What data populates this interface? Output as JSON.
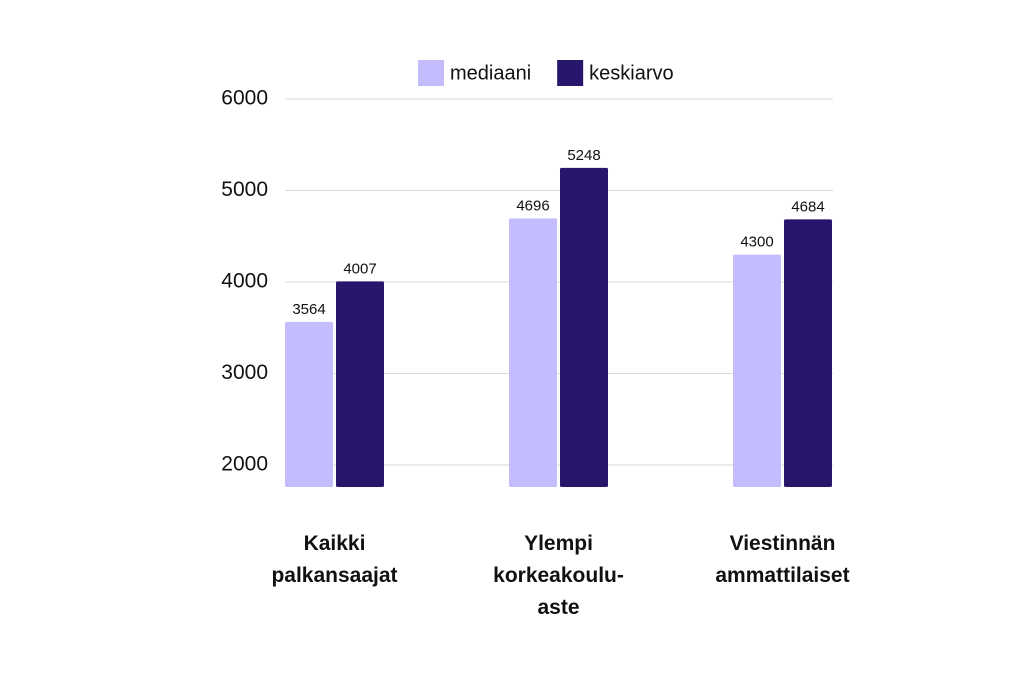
{
  "chart_data": {
    "type": "bar",
    "categories": [
      "Kaikki palkansaajat",
      "Ylempi korkeakoulu-aste",
      "Viestinnän ammattilaiset"
    ],
    "series": [
      {
        "name": "mediaani",
        "color": "#c4bdfd",
        "values": [
          3564,
          4696,
          4300
        ]
      },
      {
        "name": "keskiarvo",
        "color": "#27166b",
        "values": [
          4007,
          5248,
          4684
        ]
      }
    ],
    "ylim": [
      1760,
      6000
    ],
    "yticks": [
      2000,
      3000,
      4000,
      5000,
      6000
    ],
    "grid": true,
    "legend": "top"
  }
}
